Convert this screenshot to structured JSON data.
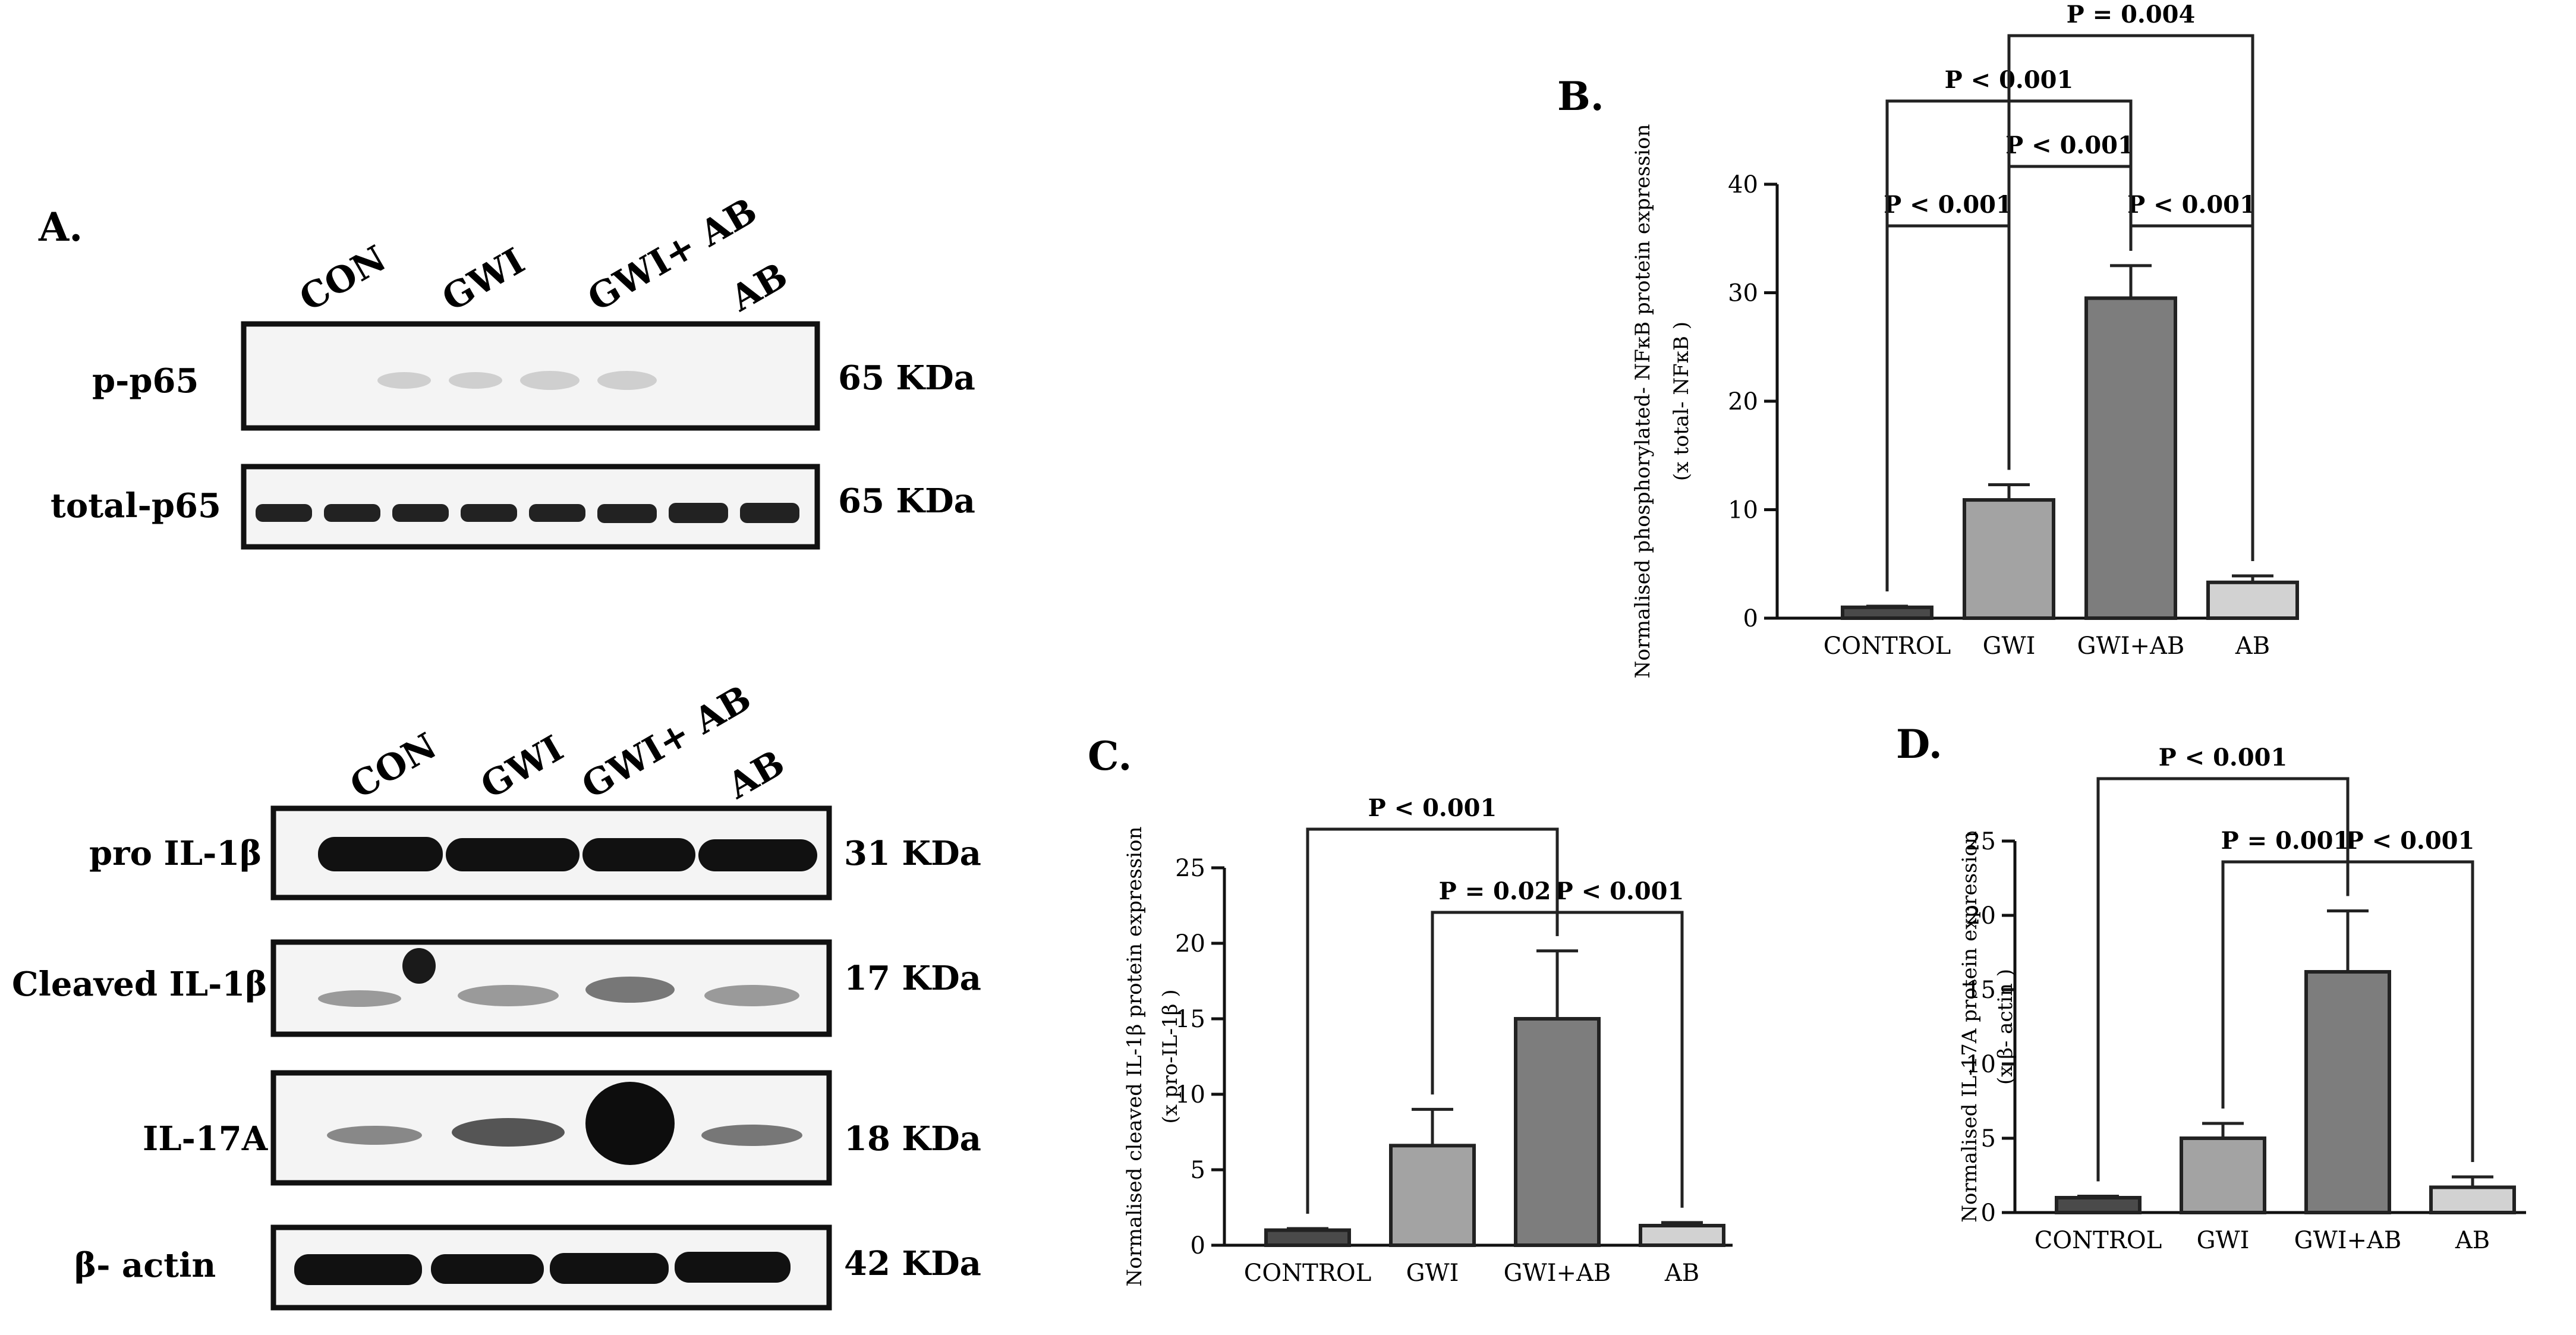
{
  "panel_a": {
    "letter": "A.",
    "top_lanes": [
      "CON",
      "GWI",
      "GWI+ AB",
      "AB"
    ],
    "bottom_lanes": [
      "CON",
      "GWI",
      "GWI+ AB",
      "AB"
    ],
    "top_blots": [
      {
        "label": "p-p65",
        "size": "65 KDa"
      },
      {
        "label": "total-p65",
        "size": "65 KDa"
      }
    ],
    "bottom_blots": [
      {
        "label": "pro IL-1β",
        "size": "31 KDa"
      },
      {
        "label": "Cleaved IL-1β",
        "size": "17 KDa"
      },
      {
        "label": "IL-17A",
        "size": "18 KDa"
      },
      {
        "label": "β- actin",
        "size": "42 KDa"
      }
    ]
  },
  "colors": {
    "control": "#4a4a4a",
    "gwi": "#a3a3a3",
    "gwi_ab": "#7d7d7d",
    "ab": "#d2d2d2",
    "axis": "#111111"
  },
  "chart_data": [
    {
      "panel": "B.",
      "type": "bar",
      "categories": [
        "CONTROL",
        "GWI",
        "GWI+AB",
        "AB"
      ],
      "values": [
        1,
        10.9,
        29.5,
        3.3
      ],
      "errors": [
        0.1,
        1.4,
        3.0,
        0.6
      ],
      "ylabel": "Normalised phosphorylated- NFκB protein expression",
      "ylabel2": "(x total- NFκB )",
      "ylim": [
        0,
        40
      ],
      "yticks": [
        0,
        10,
        20,
        30,
        40
      ],
      "comparisons": [
        {
          "from": 0,
          "to": 1,
          "label": "P < 0.001"
        },
        {
          "from": 1,
          "to": 2,
          "label": "P < 0.001"
        },
        {
          "from": 2,
          "to": 3,
          "label": "P < 0.001"
        },
        {
          "from": 0,
          "to": 2,
          "label": "P < 0.001"
        },
        {
          "from": 1,
          "to": 3,
          "label": "P = 0.004"
        }
      ]
    },
    {
      "panel": "C.",
      "type": "bar",
      "categories": [
        "CONTROL",
        "GWI",
        "GWI+AB",
        "AB"
      ],
      "values": [
        1,
        6.6,
        15,
        1.3
      ],
      "errors": [
        0.1,
        2.4,
        4.5,
        0.2
      ],
      "ylabel": "Normalised cleaved IL-1β protein expression",
      "ylabel2": "(x pro-IL-1β )",
      "ylim": [
        0,
        25
      ],
      "yticks": [
        0,
        5,
        10,
        15,
        20,
        25
      ],
      "comparisons": [
        {
          "from": 1,
          "to": 2,
          "label": "P = 0.02"
        },
        {
          "from": 2,
          "to": 3,
          "label": "P < 0.001"
        },
        {
          "from": 0,
          "to": 2,
          "label": "P < 0.001"
        }
      ]
    },
    {
      "panel": "D.",
      "type": "bar",
      "categories": [
        "CONTROL",
        "GWI",
        "GWI+AB",
        "AB"
      ],
      "values": [
        1,
        5,
        16.2,
        1.7
      ],
      "errors": [
        0.1,
        1,
        4.1,
        0.7
      ],
      "ylabel": "Normalised IL-17A protein expression",
      "ylabel2": "(x β- actin )",
      "ylim": [
        0,
        25
      ],
      "yticks": [
        0,
        5,
        10,
        15,
        20,
        25
      ],
      "comparisons": [
        {
          "from": 1,
          "to": 2,
          "label": "P = 0.001"
        },
        {
          "from": 2,
          "to": 3,
          "label": "P < 0.001"
        },
        {
          "from": 0,
          "to": 2,
          "label": "P < 0.001"
        }
      ]
    }
  ]
}
